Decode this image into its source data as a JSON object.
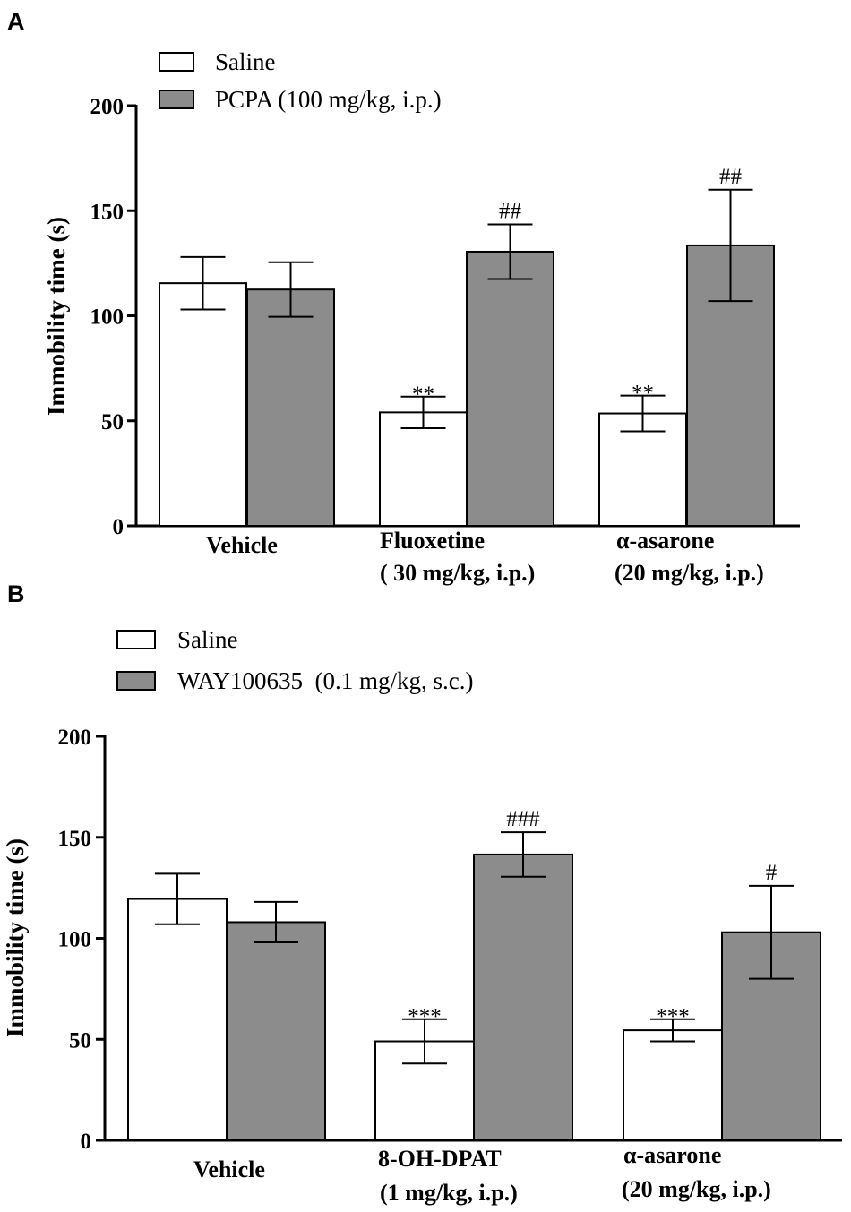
{
  "chart_data": [
    {
      "type": "bar",
      "panel": "A",
      "ylabel": "Immobility time (s)",
      "ylim": [
        0,
        200
      ],
      "yticks": [
        "0",
        "50",
        "100",
        "150",
        "200"
      ],
      "categories": [
        [
          "Vehicle"
        ],
        [
          "Fluoxetine",
          "( 30 mg/kg, i.p.)"
        ],
        [
          "α-asarone",
          "(20 mg/kg, i.p.)"
        ]
      ],
      "series": [
        {
          "name": "Saline",
          "color": "#ffffff",
          "values": [
            115.5,
            54,
            53.5
          ],
          "errors": [
            12.5,
            7.5,
            8.5
          ],
          "annotations": [
            "",
            "**",
            "**"
          ]
        },
        {
          "name": "PCPA (100 mg/kg, i.p.)",
          "color": "#8c8c8c",
          "values": [
            112.5,
            130.5,
            133.5
          ],
          "errors": [
            13,
            13,
            26.5
          ],
          "annotations": [
            "",
            "##",
            "##"
          ]
        }
      ]
    },
    {
      "type": "bar",
      "panel": "B",
      "ylabel": "Immobility time (s)",
      "ylim": [
        0,
        200
      ],
      "yticks": [
        "0",
        "50",
        "100",
        "150",
        "200"
      ],
      "categories": [
        [
          "Vehicle"
        ],
        [
          "8-OH-DPAT",
          "(1 mg/kg, i.p.)"
        ],
        [
          "α-asarone",
          "(20 mg/kg, i.p.)"
        ]
      ],
      "series": [
        {
          "name": "Saline",
          "color": "#ffffff",
          "values": [
            119.5,
            49,
            54.5
          ],
          "errors": [
            12.5,
            11,
            5.5
          ],
          "annotations": [
            "",
            "***",
            "***"
          ]
        },
        {
          "name": "WAY100635  (0.1 mg/kg, s.c.)",
          "color": "#8c8c8c",
          "values": [
            108,
            141.5,
            103
          ],
          "errors": [
            10,
            11,
            23
          ],
          "annotations": [
            "",
            "###",
            "#"
          ]
        }
      ]
    }
  ]
}
